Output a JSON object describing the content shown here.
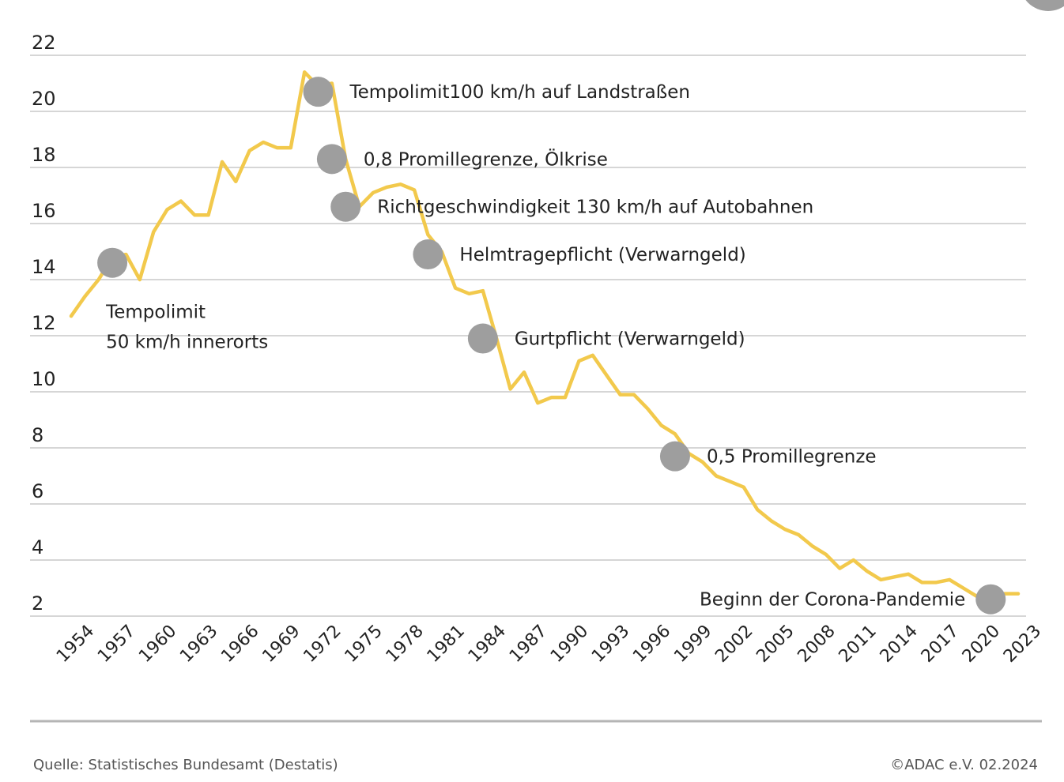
{
  "footer": {
    "source": "Quelle: Statistisches Bundesamt (Destatis)",
    "copyright": "©ADAC e.V.  02.2024"
  },
  "chart_data": {
    "type": "line",
    "title": "",
    "xlabel": "",
    "ylabel": "",
    "xlim": [
      1954,
      2023
    ],
    "ylim": [
      2,
      22
    ],
    "grid": true,
    "line_color": "#f2c94c",
    "marker_color": "#9e9e9e",
    "yticks": [
      "22",
      "20",
      "18",
      "16",
      "14",
      "12",
      "10",
      "8",
      "6",
      "4",
      "2"
    ],
    "xticks": [
      "1954",
      "1957",
      "1960",
      "1963",
      "1966",
      "1969",
      "1972",
      "1975",
      "1978",
      "1981",
      "1984",
      "1987",
      "1990",
      "1993",
      "1996",
      "1999",
      "2002",
      "2005",
      "2008",
      "2011",
      "2014",
      "2017",
      "2020",
      "2023"
    ],
    "x": [
      1954,
      1955,
      1956,
      1957,
      1958,
      1959,
      1960,
      1961,
      1962,
      1963,
      1964,
      1965,
      1966,
      1967,
      1968,
      1969,
      1970,
      1971,
      1972,
      1973,
      1974,
      1975,
      1976,
      1977,
      1978,
      1979,
      1980,
      1981,
      1982,
      1983,
      1984,
      1985,
      1986,
      1987,
      1988,
      1989,
      1990,
      1991,
      1992,
      1993,
      1994,
      1995,
      1996,
      1997,
      1998,
      1999,
      2000,
      2001,
      2002,
      2003,
      2004,
      2005,
      2006,
      2007,
      2008,
      2009,
      2010,
      2011,
      2012,
      2013,
      2014,
      2015,
      2016,
      2017,
      2018,
      2019,
      2020,
      2021,
      2022,
      2023
    ],
    "y": [
      12.7,
      13.4,
      14.0,
      14.8,
      14.9,
      14.0,
      15.7,
      16.5,
      16.8,
      16.3,
      16.3,
      18.2,
      17.5,
      18.6,
      18.9,
      18.7,
      18.7,
      21.4,
      20.9,
      21.0,
      18.3,
      16.6,
      17.1,
      17.3,
      17.4,
      17.2,
      15.6,
      15.0,
      13.7,
      13.5,
      13.6,
      11.9,
      10.1,
      10.7,
      9.6,
      9.8,
      9.8,
      11.1,
      11.3,
      10.6,
      9.9,
      9.9,
      9.4,
      8.8,
      8.5,
      7.8,
      7.5,
      7.0,
      6.8,
      6.6,
      5.8,
      5.4,
      5.1,
      4.9,
      4.5,
      4.2,
      3.7,
      4.0,
      3.6,
      3.3,
      3.4,
      3.5,
      3.2,
      3.2,
      3.3,
      3.0,
      2.7,
      2.6,
      2.8,
      2.8
    ],
    "annotations": [
      {
        "x": 1957,
        "y": 14.6,
        "lines": [
          "Tempolimit",
          "50 km/h innerorts"
        ]
      },
      {
        "x": 1972,
        "y": 20.7,
        "lines": [
          "Tempolimit100 km/h auf Landstraßen"
        ]
      },
      {
        "x": 1973,
        "y": 18.3,
        "lines": [
          "0,8 Promillegrenze, Ölkrise"
        ]
      },
      {
        "x": 1974,
        "y": 16.6,
        "lines": [
          "Richtgeschwindigkeit 130 km/h auf Autobahnen"
        ]
      },
      {
        "x": 1980,
        "y": 14.9,
        "lines": [
          "Helmtragepflicht (Verwarngeld)"
        ]
      },
      {
        "x": 1984,
        "y": 11.9,
        "lines": [
          "Gurtpflicht (Verwarngeld)"
        ]
      },
      {
        "x": 1998,
        "y": 7.7,
        "lines": [
          "0,5 Promillegrenze"
        ]
      },
      {
        "x": 2021,
        "y": 2.6,
        "lines": [
          "Beginn der Corona-Pandemie"
        ]
      }
    ]
  }
}
